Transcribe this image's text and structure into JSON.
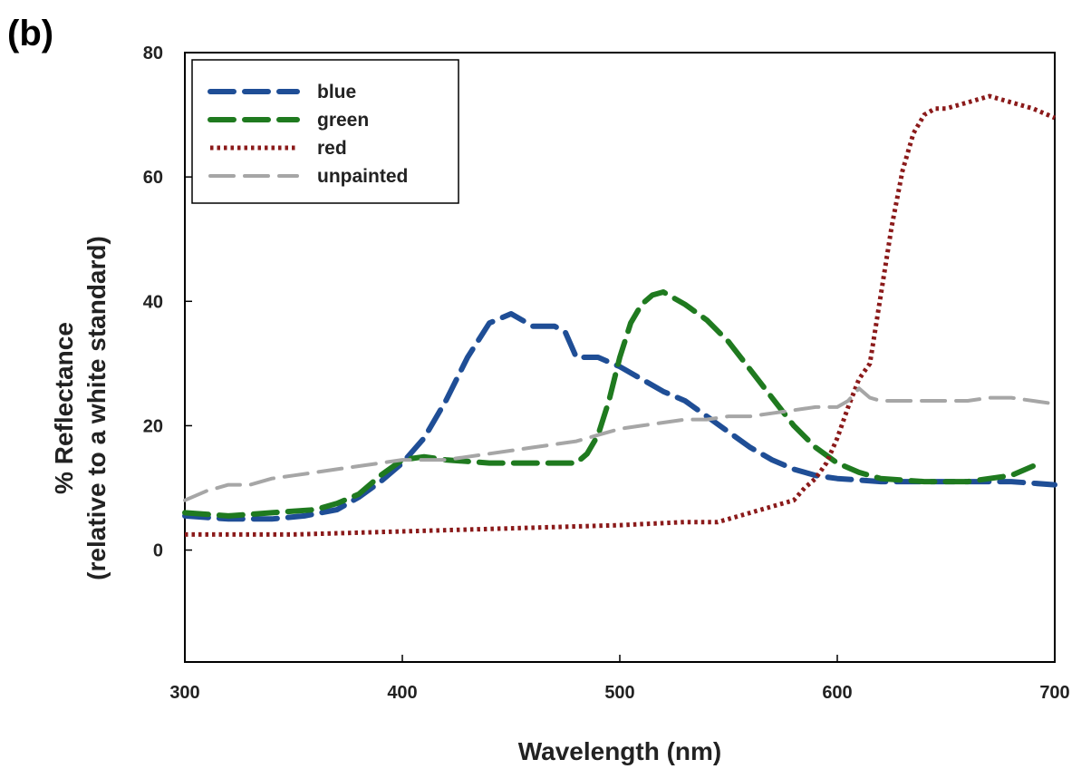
{
  "panel_label": "(b)",
  "chart_data": {
    "type": "line",
    "title": "",
    "xlabel": "Wavelength (nm)",
    "ylabel_line1": "% Reflectance",
    "ylabel_line2": "(relative to a white standard)",
    "xlim": [
      300,
      700
    ],
    "ylim": [
      -18,
      80
    ],
    "xticks": [
      300,
      400,
      500,
      600,
      700
    ],
    "yticks": [
      0,
      20,
      40,
      60,
      80
    ],
    "grid": false,
    "legend_position": "top-left",
    "series": [
      {
        "name": "blue",
        "color": "#1f4e96",
        "dash": "long-dash",
        "x": [
          300,
          320,
          340,
          355,
          370,
          380,
          390,
          400,
          410,
          420,
          430,
          440,
          450,
          460,
          470,
          475,
          480,
          490,
          500,
          510,
          520,
          530,
          540,
          550,
          560,
          570,
          580,
          590,
          600,
          620,
          640,
          660,
          680,
          700
        ],
        "y": [
          5.5,
          5,
          5,
          5.5,
          6.5,
          8.5,
          11,
          14,
          18,
          24,
          31,
          36.5,
          38,
          36,
          36,
          35,
          31,
          31,
          29.5,
          27.5,
          25.5,
          24,
          21.5,
          19,
          16.5,
          14.5,
          13,
          12,
          11.5,
          11,
          11,
          11,
          11,
          10.5
        ]
      },
      {
        "name": "green",
        "color": "#1f7a1f",
        "dash": "long-dash",
        "x": [
          300,
          320,
          340,
          360,
          370,
          380,
          390,
          400,
          410,
          420,
          440,
          460,
          470,
          480,
          485,
          490,
          495,
          500,
          505,
          510,
          515,
          520,
          525,
          530,
          540,
          550,
          560,
          570,
          580,
          590,
          600,
          610,
          620,
          640,
          660,
          680,
          690
        ],
        "y": [
          6,
          5.5,
          6,
          6.5,
          7.5,
          9,
          12,
          14.5,
          15,
          14.5,
          14,
          14,
          14,
          14,
          15.5,
          18.5,
          24,
          31,
          36.5,
          39.5,
          41,
          41.5,
          40.5,
          39.5,
          37,
          33.5,
          29,
          24.5,
          20,
          16.5,
          14,
          12.5,
          11.5,
          11,
          11,
          12,
          13.5
        ]
      },
      {
        "name": "red",
        "color": "#8b1a1a",
        "dash": "dotted",
        "x": [
          300,
          350,
          400,
          450,
          500,
          530,
          545,
          555,
          565,
          575,
          580,
          585,
          590,
          595,
          600,
          605,
          610,
          615,
          620,
          625,
          630,
          635,
          640,
          645,
          650,
          660,
          670,
          680,
          690,
          700
        ],
        "y": [
          2.5,
          2.5,
          3,
          3.5,
          4,
          4.5,
          4.5,
          5.5,
          6.5,
          7.5,
          8,
          10,
          11.5,
          14,
          18,
          23,
          27.5,
          30,
          41,
          52,
          61,
          67,
          70,
          71,
          71,
          72,
          73,
          72,
          71,
          69.5
        ]
      },
      {
        "name": "unpainted",
        "color": "#a6a6a6",
        "dash": "long-dash",
        "x": [
          300,
          310,
          320,
          330,
          340,
          350,
          360,
          370,
          380,
          390,
          400,
          410,
          420,
          430,
          440,
          450,
          460,
          470,
          480,
          490,
          500,
          510,
          520,
          530,
          540,
          550,
          560,
          570,
          580,
          590,
          600,
          605,
          610,
          615,
          620,
          630,
          640,
          650,
          660,
          670,
          680,
          690,
          700
        ],
        "y": [
          8,
          9.5,
          10.5,
          10.5,
          11.5,
          12,
          12.5,
          13,
          13.5,
          14,
          14.5,
          14.5,
          14.5,
          15,
          15.5,
          16,
          16.5,
          17,
          17.5,
          18.5,
          19.5,
          20,
          20.5,
          21,
          21,
          21.5,
          21.5,
          22,
          22.5,
          23,
          23,
          24,
          26,
          24.5,
          24,
          24,
          24,
          24,
          24,
          24.5,
          24.5,
          24,
          23.5
        ]
      }
    ]
  }
}
